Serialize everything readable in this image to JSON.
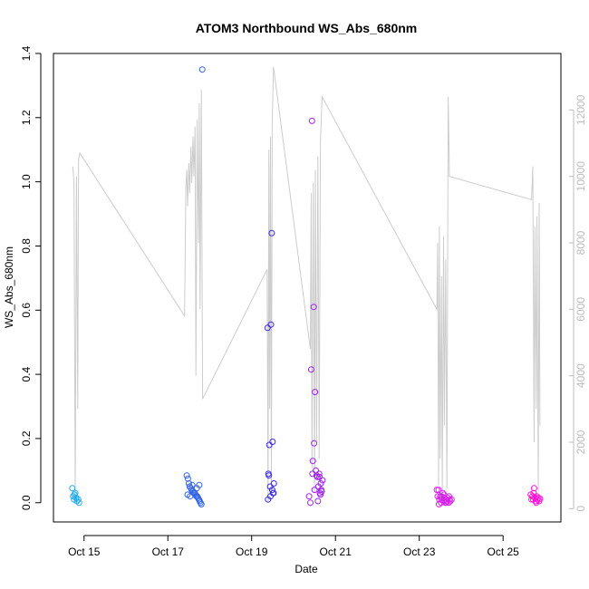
{
  "chart_data": {
    "type": "scatter",
    "title": "ATOM3 Northbound WS_Abs_680nm",
    "xlabel": "Date",
    "ylabel": "WS_Abs_680nm",
    "x_unit": "days in October (day of month)",
    "xlim": [
      14.27,
      26.38
    ],
    "ylim": [
      -0.06,
      1.4
    ],
    "x_ticks": [
      {
        "value": 15,
        "label": "Oct 15"
      },
      {
        "value": 17,
        "label": "Oct 17"
      },
      {
        "value": 19,
        "label": "Oct 19"
      },
      {
        "value": 21,
        "label": "Oct 21"
      },
      {
        "value": 23,
        "label": "Oct 23"
      },
      {
        "value": 25,
        "label": "Oct 25"
      }
    ],
    "y_ticks": [
      0.0,
      0.2,
      0.4,
      0.6,
      0.8,
      1.0,
      1.2,
      1.4
    ],
    "y_tick_labels": [
      "0.0",
      "0.2",
      "0.4",
      "0.6",
      "0.8",
      "1.0",
      "1.2",
      "1.4"
    ],
    "y2_ticks": [
      0,
      2000,
      4000,
      6000,
      8000,
      10000,
      12000
    ],
    "y2_lim": [
      -400,
      13700
    ],
    "y2_color": "#bdbdbd",
    "grid": false,
    "secondary_series": {
      "color": "#cccccc",
      "points": [
        [
          14.73,
          10300
        ],
        [
          14.76,
          9800
        ],
        [
          14.79,
          400
        ],
        [
          14.82,
          10000
        ],
        [
          14.85,
          3000
        ],
        [
          14.87,
          10500
        ],
        [
          14.9,
          10700
        ],
        [
          17.4,
          5800
        ],
        [
          17.43,
          9700
        ],
        [
          17.45,
          10200
        ],
        [
          17.47,
          9100
        ],
        [
          17.5,
          10400
        ],
        [
          17.52,
          9500
        ],
        [
          17.55,
          10900
        ],
        [
          17.57,
          9800
        ],
        [
          17.6,
          11200
        ],
        [
          17.62,
          10000
        ],
        [
          17.65,
          11500
        ],
        [
          17.67,
          4000
        ],
        [
          17.7,
          11700
        ],
        [
          17.73,
          8000
        ],
        [
          17.75,
          12200
        ],
        [
          17.77,
          6000
        ],
        [
          17.8,
          12600
        ],
        [
          17.83,
          3300
        ],
        [
          19.37,
          7200
        ],
        [
          19.39,
          200
        ],
        [
          19.41,
          10800
        ],
        [
          19.43,
          3000
        ],
        [
          19.45,
          11200
        ],
        [
          19.47,
          600
        ],
        [
          19.49,
          11600
        ],
        [
          19.52,
          13300
        ],
        [
          20.4,
          4800
        ],
        [
          20.42,
          9500
        ],
        [
          20.44,
          1200
        ],
        [
          20.47,
          9800
        ],
        [
          20.5,
          500
        ],
        [
          20.52,
          10200
        ],
        [
          20.55,
          2000
        ],
        [
          20.58,
          10600
        ],
        [
          20.61,
          1500
        ],
        [
          20.64,
          11000
        ],
        [
          20.68,
          12400
        ],
        [
          23.42,
          6000
        ],
        [
          23.44,
          8000
        ],
        [
          23.46,
          700
        ],
        [
          23.48,
          8500
        ],
        [
          23.5,
          1500
        ],
        [
          23.53,
          7000
        ],
        [
          23.55,
          500
        ],
        [
          23.58,
          8200
        ],
        [
          23.6,
          2500
        ],
        [
          23.63,
          7500
        ],
        [
          23.66,
          600
        ],
        [
          23.69,
          12400
        ],
        [
          23.72,
          10000
        ],
        [
          25.68,
          9300
        ],
        [
          25.71,
          10300
        ],
        [
          25.74,
          2000
        ],
        [
          25.76,
          8500
        ],
        [
          25.79,
          3000
        ],
        [
          25.81,
          8800
        ],
        [
          25.84,
          500
        ],
        [
          25.86,
          9200
        ],
        [
          25.88,
          2500
        ]
      ]
    },
    "series": [
      {
        "color": "#1eaaf2",
        "points": [
          [
            14.72,
            0.045
          ],
          [
            14.74,
            0.02
          ],
          [
            14.76,
            0.01
          ],
          [
            14.79,
            0.03
          ],
          [
            14.81,
            0.015
          ],
          [
            14.83,
            0.005
          ],
          [
            14.86,
            0.01
          ],
          [
            14.88,
            0.0
          ],
          [
            14.77,
            0.025
          ]
        ]
      },
      {
        "color": "#2f62e8",
        "points": [
          [
            17.45,
            0.085
          ],
          [
            17.48,
            0.075
          ],
          [
            17.5,
            0.06
          ],
          [
            17.52,
            0.05
          ],
          [
            17.55,
            0.045
          ],
          [
            17.57,
            0.04
          ],
          [
            17.6,
            0.035
          ],
          [
            17.62,
            0.03
          ],
          [
            17.64,
            0.03
          ],
          [
            17.66,
            0.025
          ],
          [
            17.68,
            0.02
          ],
          [
            17.7,
            0.02
          ],
          [
            17.72,
            0.015
          ],
          [
            17.74,
            0.01
          ],
          [
            17.76,
            0.005
          ],
          [
            17.78,
            0.0
          ],
          [
            17.8,
            -0.005
          ],
          [
            17.47,
            0.025
          ],
          [
            17.58,
            0.055
          ],
          [
            17.69,
            0.045
          ],
          [
            17.82,
            1.35
          ],
          [
            17.75,
            0.055
          ],
          [
            17.53,
            0.02
          ]
        ]
      },
      {
        "color": "#3a28e8",
        "points": [
          [
            19.38,
            0.545
          ],
          [
            19.4,
            0.09
          ],
          [
            19.42,
            0.18
          ],
          [
            19.44,
            0.05
          ],
          [
            19.46,
            0.555
          ],
          [
            19.48,
            0.84
          ],
          [
            19.5,
            0.19
          ],
          [
            19.51,
            0.03
          ],
          [
            19.53,
            0.06
          ],
          [
            19.39,
            0.01
          ],
          [
            19.41,
            0.085
          ],
          [
            19.45,
            0.02
          ],
          [
            19.49,
            0.04
          ],
          [
            19.52,
            0.03
          ]
        ]
      },
      {
        "color": "#a020f0",
        "points": [
          [
            20.37,
            0.02
          ],
          [
            20.4,
            0.0
          ],
          [
            20.42,
            0.415
          ],
          [
            20.44,
            1.19
          ],
          [
            20.45,
            0.09
          ],
          [
            20.46,
            0.13
          ],
          [
            20.48,
            0.61
          ],
          [
            20.49,
            0.185
          ],
          [
            20.5,
            0.04
          ],
          [
            20.51,
            0.345
          ],
          [
            20.53,
            0.1
          ],
          [
            20.55,
            0.085
          ],
          [
            20.57,
            0.08
          ],
          [
            20.59,
            0.05
          ],
          [
            20.61,
            0.09
          ],
          [
            20.62,
            0.08
          ],
          [
            20.63,
            0.03
          ],
          [
            20.65,
            0.06
          ],
          [
            20.66,
            0.04
          ],
          [
            20.67,
            0.035
          ],
          [
            20.58,
            0.005
          ],
          [
            20.64,
            0.025
          ],
          [
            20.69,
            0.07
          ]
        ]
      },
      {
        "color": "#d421e6",
        "points": [
          [
            23.42,
            0.04
          ],
          [
            23.44,
            0.02
          ],
          [
            23.46,
            0.04
          ],
          [
            23.48,
            0.01
          ],
          [
            23.5,
            0.02
          ],
          [
            23.52,
            0.0
          ],
          [
            23.54,
            0.01
          ],
          [
            23.56,
            0.03
          ],
          [
            23.58,
            0.005
          ],
          [
            23.6,
            0.015
          ],
          [
            23.62,
            0.0
          ],
          [
            23.64,
            0.01
          ],
          [
            23.66,
            0.005
          ],
          [
            23.68,
            0.015
          ],
          [
            23.7,
            0.0
          ],
          [
            23.72,
            0.01
          ],
          [
            23.74,
            0.005
          ],
          [
            23.77,
            0.01
          ],
          [
            23.47,
            -0.005
          ],
          [
            23.53,
            0.02
          ],
          [
            23.59,
            0.025
          ],
          [
            23.65,
            0.0
          ],
          [
            23.71,
            0.02
          ]
        ]
      },
      {
        "color": "#ff10d4",
        "points": [
          [
            25.66,
            0.025
          ],
          [
            25.68,
            0.01
          ],
          [
            25.7,
            0.02
          ],
          [
            25.72,
            0.01
          ],
          [
            25.74,
            0.045
          ],
          [
            25.76,
            0.015
          ],
          [
            25.78,
            0.005
          ],
          [
            25.8,
            0.02
          ],
          [
            25.82,
            0.01
          ],
          [
            25.84,
            0.015
          ],
          [
            25.86,
            0.005
          ],
          [
            25.88,
            0.012
          ],
          [
            25.73,
            0.03
          ],
          [
            25.79,
            0.0
          ]
        ]
      }
    ]
  }
}
